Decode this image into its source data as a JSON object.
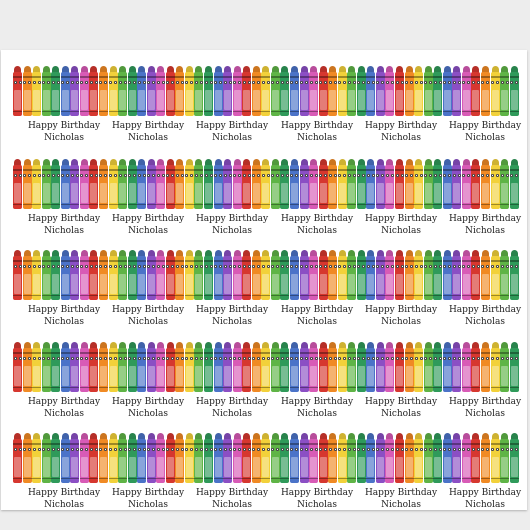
{
  "greeting": {
    "line1": "Happy Birthday",
    "line2": "Nicholas"
  },
  "pattern": {
    "band_count": 5,
    "crayons_per_row": 53,
    "greetings_per_row": 6,
    "crayon_colors": [
      "#d6372f",
      "#f08a24",
      "#f2d13a",
      "#5fb446",
      "#2f9a5a",
      "#4b73c8",
      "#8b4fc4",
      "#d85bb6"
    ]
  }
}
